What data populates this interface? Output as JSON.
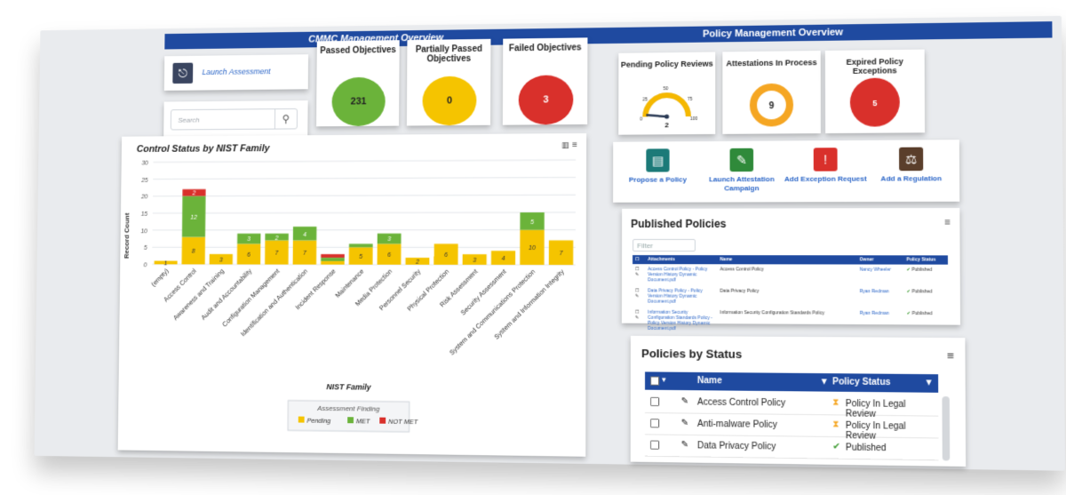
{
  "header": {
    "left_title": "CMMC Management Overview",
    "right_title": "Policy Management Overview"
  },
  "launch": {
    "label": "Launch Assessment"
  },
  "search": {
    "placeholder": "Search"
  },
  "objectives": [
    {
      "title": "Passed Objectives",
      "value": "231",
      "color": "#6bb33a"
    },
    {
      "title": "Partially Passed Objectives",
      "value": "0",
      "color": "#f5c400"
    },
    {
      "title": "Failed Objectives",
      "value": "3",
      "color": "#d9302b"
    }
  ],
  "chart": {
    "title": "Control Status by NIST Family",
    "xlabel": "NIST Family",
    "ylabel": "Record Count",
    "legend_title": "Assessment Finding"
  },
  "chart_data": {
    "type": "bar",
    "stacked": true,
    "title": "Control Status by NIST Family",
    "xlabel": "NIST Family",
    "ylabel": "Record Count",
    "ylim": [
      0,
      30
    ],
    "yticks": [
      0,
      5,
      10,
      15,
      20,
      25,
      30
    ],
    "categories": [
      "(empty)",
      "Access Control",
      "Awareness and Training",
      "Audit and Accountability",
      "Configuration Management",
      "Identification and Authentication",
      "Incident Response",
      "Maintenance",
      "Media Protection",
      "Personnel Security",
      "Physical Protection",
      "Risk Assessment",
      "Security Assessment",
      "System and Communications Protection",
      "System and Information Integrity"
    ],
    "series": [
      {
        "name": "Pending",
        "color": "#f5c400",
        "values": [
          1,
          8,
          3,
          6,
          7,
          7,
          1,
          5,
          6,
          2,
          6,
          3,
          4,
          10,
          7
        ]
      },
      {
        "name": "MET",
        "color": "#6bb33a",
        "values": [
          0,
          12,
          0,
          3,
          2,
          4,
          1,
          1,
          3,
          0,
          0,
          0,
          0,
          5,
          0
        ]
      },
      {
        "name": "NOT MET",
        "color": "#d9302b",
        "values": [
          0,
          2,
          0,
          0,
          0,
          0,
          1,
          0,
          0,
          0,
          0,
          0,
          0,
          0,
          0
        ]
      }
    ],
    "labels": [
      [
        "1",
        "8",
        "3",
        "6",
        "7",
        "7",
        "",
        "5",
        "6",
        "2",
        "6",
        "3",
        "4",
        "10",
        "7"
      ],
      [
        "",
        "12",
        "",
        "3",
        "2",
        "4",
        "",
        "",
        "3",
        "",
        "",
        "",
        "",
        "5",
        ""
      ],
      [
        "",
        "2",
        "",
        "",
        "",
        "",
        "",
        "",
        "",
        "",
        "",
        "",
        "",
        "",
        ""
      ]
    ],
    "legend": "bottom-center",
    "grid": true
  },
  "policy_widgets": {
    "pending": {
      "title": "Pending Policy Reviews",
      "value": "2",
      "ticks": [
        "0",
        "25",
        "50",
        "75",
        "100"
      ]
    },
    "attest": {
      "title": "Attestations In Process",
      "value": "9"
    },
    "expired": {
      "title": "Expired Policy Exceptions",
      "value": "5"
    }
  },
  "actions": [
    {
      "label": "Propose a Policy",
      "icon": "book-icon",
      "color": "#1c7a78"
    },
    {
      "label": "Launch Attestation Campaign",
      "icon": "signature-icon",
      "color": "#2f8a3a"
    },
    {
      "label": "Add Exception Request",
      "icon": "alert-icon",
      "color": "#d9302b"
    },
    {
      "label": "Add a Regulation",
      "icon": "gavel-icon",
      "color": "#5a3e2b"
    }
  ],
  "published": {
    "title": "Published Policies",
    "filter_placeholder": "Filter",
    "columns": [
      "Attachments",
      "Name",
      "Owner",
      "Policy Status"
    ],
    "rows": [
      {
        "attachment": "Access Control Policy - Policy Version History Dynamic Document.pdf",
        "name": "Access Control Policy",
        "owner": "Nancy Wheeler",
        "status": "Published"
      },
      {
        "attachment": "Data Privacy Policy - Policy Version History Dynamic Document.pdf",
        "name": "Data Privacy Policy",
        "owner": "Ryan Redman",
        "status": "Published"
      },
      {
        "attachment": "Information Security Configuration Standards Policy - Policy Version History Dynamic Document.pdf",
        "name": "Information Security Configuration Standards Policy",
        "owner": "Ryan Redman",
        "status": "Published"
      }
    ]
  },
  "policies_by_status": {
    "title": "Policies by Status",
    "columns": [
      "Name",
      "Policy Status"
    ],
    "rows": [
      {
        "name": "Access Control Policy",
        "status": "Policy In Legal Review",
        "icon": "hourglass-icon"
      },
      {
        "name": "Anti-malware Policy",
        "status": "Policy In Legal Review",
        "icon": "hourglass-icon"
      },
      {
        "name": "Data Privacy Policy",
        "status": "Published",
        "icon": "check-icon"
      }
    ]
  }
}
